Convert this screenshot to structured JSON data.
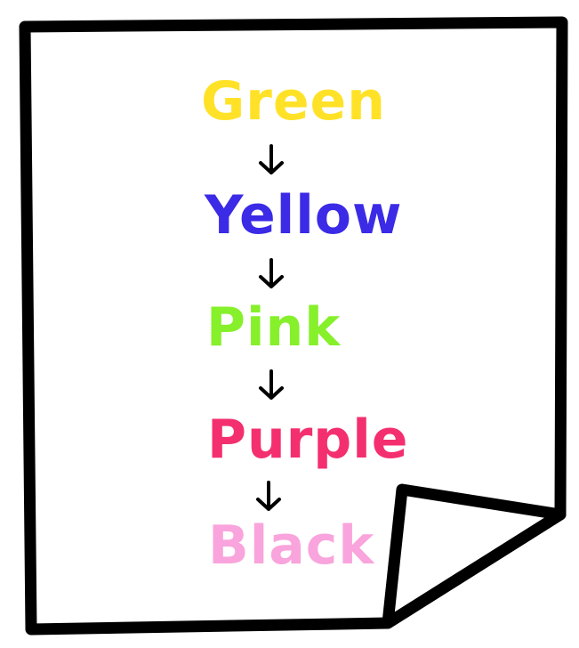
{
  "words": [
    {
      "text": "Green",
      "color": "#ffe227"
    },
    {
      "text": "Yellow",
      "color": "#3b2ae6"
    },
    {
      "text": "Pink",
      "color": "#86f02b"
    },
    {
      "text": "Purple",
      "color": "#f42f6f"
    },
    {
      "text": "Black",
      "color": "#f9a4dc"
    }
  ],
  "arrow_icon": "down-arrow-icon",
  "outline_color": "#000000"
}
